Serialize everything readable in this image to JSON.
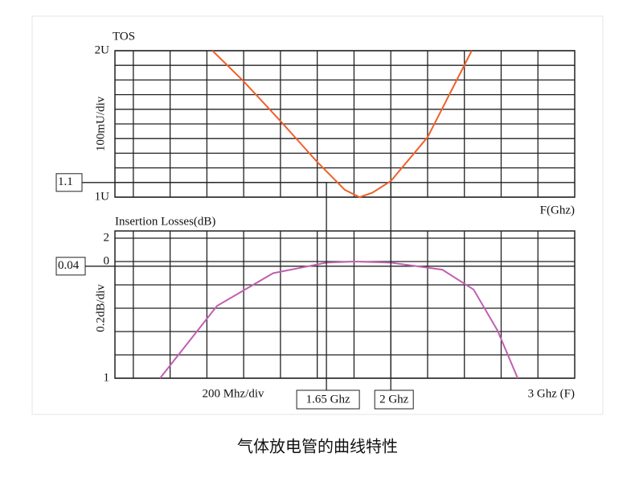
{
  "chart_data": [
    {
      "type": "line",
      "title": "TOS",
      "y_label": "100mU/div",
      "x_label": "F(Ghz)",
      "x": [
        1.03,
        1.2,
        1.4,
        1.6,
        1.75,
        1.83,
        1.9,
        2.0,
        2.2,
        2.44
      ],
      "values": [
        2,
        1.79,
        1.52,
        1.24,
        1.05,
        1.0,
        1.03,
        1.11,
        1.41,
        2
      ],
      "color": "#f0602a",
      "xlim": [
        0.5,
        3
      ],
      "ylim": [
        1,
        2
      ],
      "yticks": [
        {
          "value": 1,
          "label": "1U"
        },
        {
          "value": 2,
          "label": "2U"
        }
      ],
      "ygrid": [
        1.1,
        1.2,
        1.3,
        1.4,
        1.5,
        1.6,
        1.7,
        1.8,
        1.9
      ],
      "xgrid": [
        0.6,
        0.8,
        1.0,
        1.2,
        1.4,
        1.6,
        1.8,
        2.0,
        2.2,
        2.4,
        2.6,
        2.8
      ],
      "y_marker": {
        "value": 1.1,
        "label": "1.1"
      }
    },
    {
      "type": "line",
      "title": "Insertion Losses(dB)",
      "y_label": "0.2dB/div",
      "x_label": "200 Mhz/div",
      "x_end_label": "3 Ghz (F)",
      "x": [
        0.745,
        1.055,
        1.36,
        1.65,
        1.8,
        2.0,
        2.28,
        2.45,
        2.58,
        2.69
      ],
      "values": [
        -1,
        -0.38,
        -0.1,
        -0.01,
        0,
        -0.01,
        -0.07,
        -0.24,
        -0.59,
        -1
      ],
      "color": "#c060b0",
      "xlim": [
        0.5,
        3
      ],
      "ylim": [
        -1,
        0.2
      ],
      "yticks": [
        {
          "value": 0.2,
          "label": "2"
        },
        0,
        {
          "value": -1,
          "label": "1"
        }
      ],
      "ygrid": [
        -0.8,
        -0.6,
        -0.4,
        -0.2
      ],
      "xgrid": [
        0.6,
        0.8,
        1.0,
        1.2,
        1.4,
        1.6,
        1.8,
        2.0,
        2.2,
        2.4,
        2.6,
        2.8
      ],
      "y_marker": {
        "value": -0.04,
        "label": "0.04"
      },
      "x_markers": [
        {
          "value": 1.65,
          "label": "1.65 Ghz"
        },
        {
          "value": 2,
          "label": "2 Ghz"
        }
      ]
    }
  ],
  "caption": "气体放电管的曲线特性"
}
